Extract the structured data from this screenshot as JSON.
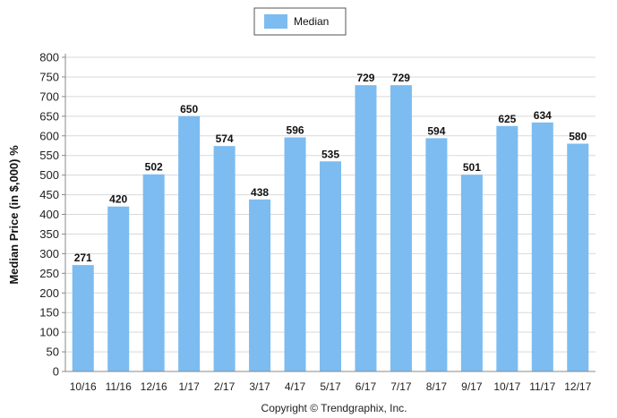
{
  "chart_data": {
    "type": "bar",
    "categories": [
      "10/16",
      "11/16",
      "12/16",
      "1/17",
      "2/17",
      "3/17",
      "4/17",
      "5/17",
      "6/17",
      "7/17",
      "8/17",
      "9/17",
      "10/17",
      "11/17",
      "12/17"
    ],
    "series": [
      {
        "name": "Median",
        "values": [
          271,
          420,
          502,
          650,
          574,
          438,
          596,
          535,
          729,
          729,
          594,
          501,
          625,
          634,
          580
        ],
        "color": "#7cbcf0"
      }
    ],
    "ylabel": "Median Price (in $,000) %",
    "xlabel": "",
    "ylim": [
      0,
      800
    ],
    "yticks": [
      0,
      50,
      100,
      150,
      200,
      250,
      300,
      350,
      400,
      450,
      500,
      550,
      600,
      650,
      700,
      750,
      800
    ],
    "grid": true,
    "legend": "top-center",
    "data_labels": true
  },
  "legend": {
    "label": "Median"
  },
  "footer": {
    "copyright": "Copyright © Trendgraphix, Inc."
  }
}
